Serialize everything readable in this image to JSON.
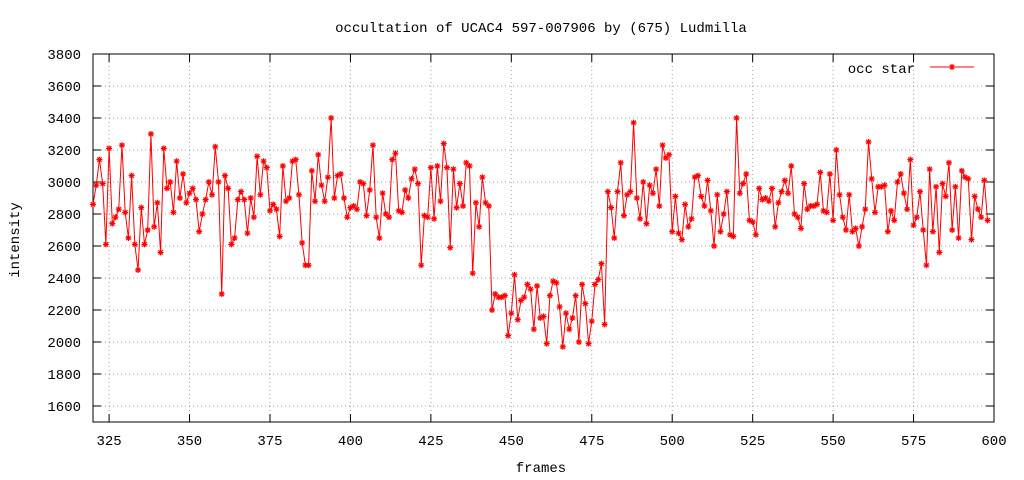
{
  "chart_data": {
    "type": "line",
    "title": "occultation of UCAC4 597-007906 by (675) Ludmilla",
    "xlabel": "frames",
    "ylabel": "intensity",
    "xlim": [
      320,
      600
    ],
    "ylim": [
      1500,
      3800
    ],
    "xticks": [
      325,
      350,
      375,
      400,
      425,
      450,
      475,
      500,
      525,
      550,
      575,
      600
    ],
    "yticks": [
      1600,
      1800,
      2000,
      2200,
      2400,
      2600,
      2800,
      3000,
      3200,
      3400,
      3600,
      3800
    ],
    "grid": true,
    "legend_position": "top-right",
    "colors": {
      "series": "#ff0000"
    },
    "series": [
      {
        "name": "occ star",
        "x_start": 320,
        "x_step": 1,
        "values": [
          2860,
          2980,
          3140,
          2990,
          2610,
          3210,
          2740,
          2780,
          2830,
          3230,
          2810,
          2650,
          3040,
          2610,
          2450,
          2840,
          2610,
          2700,
          3300,
          2720,
          2870,
          2560,
          3210,
          2960,
          3000,
          2810,
          3130,
          2900,
          3050,
          2870,
          2930,
          2960,
          2890,
          2690,
          2800,
          2890,
          3000,
          2920,
          3220,
          3000,
          2300,
          3040,
          2960,
          2610,
          2650,
          2890,
          2940,
          2890,
          2680,
          2900,
          2780,
          3160,
          2920,
          3130,
          3090,
          2820,
          2860,
          2830,
          2660,
          3100,
          2880,
          2900,
          3130,
          3140,
          2920,
          2620,
          2480,
          2480,
          3070,
          2880,
          3170,
          2980,
          2880,
          3030,
          3400,
          2900,
          3040,
          3050,
          2900,
          2780,
          2840,
          2850,
          2830,
          3000,
          2990,
          2790,
          2950,
          3230,
          2780,
          2650,
          2930,
          2800,
          2780,
          3140,
          3180,
          2820,
          2810,
          2950,
          2900,
          3020,
          3080,
          2990,
          2480,
          2790,
          2780,
          3090,
          2770,
          3100,
          2880,
          3240,
          3090,
          2590,
          3080,
          2840,
          2990,
          2850,
          3120,
          3100,
          2430,
          2870,
          2720,
          3030,
          2870,
          2850,
          2200,
          2300,
          2280,
          2280,
          2290,
          2040,
          2180,
          2420,
          2140,
          2260,
          2280,
          2360,
          2330,
          2080,
          2350,
          2150,
          2160,
          1990,
          2290,
          2380,
          2370,
          2220,
          1970,
          2180,
          2080,
          2150,
          2290,
          2000,
          2360,
          2240,
          1990,
          2130,
          2360,
          2390,
          2490,
          2110,
          2940,
          2840,
          2650,
          2940,
          3120,
          2790,
          2920,
          2940,
          3370,
          2900,
          2770,
          3000,
          2740,
          2980,
          2930,
          3080,
          2850,
          3230,
          3150,
          3170,
          2690,
          2910,
          2680,
          2640,
          2860,
          2720,
          2770,
          3030,
          3040,
          2910,
          2850,
          3010,
          2820,
          2600,
          2920,
          2690,
          2800,
          2940,
          2670,
          2660,
          3400,
          2930,
          2990,
          3050,
          2760,
          2750,
          2670,
          2960,
          2890,
          2900,
          2880,
          2960,
          2720,
          2870,
          2940,
          3010,
          2930,
          3100,
          2800,
          2780,
          2710,
          2990,
          2830,
          2850,
          2850,
          2860,
          3060,
          2820,
          2810,
          3050,
          2760,
          3200,
          2920,
          2780,
          2700,
          2920,
          2690,
          2710,
          2600,
          2720,
          2830,
          3250,
          3020,
          2810,
          2970,
          2970,
          2980,
          2690,
          2820,
          2760,
          3000,
          3050,
          2930,
          2830,
          3140,
          2730,
          2780,
          2940,
          2700,
          2480,
          3080,
          2690,
          2970,
          2560,
          2990,
          2910,
          3120,
          2700,
          2970,
          2650,
          3070,
          3030,
          3020,
          2640,
          2910,
          2830,
          2780,
          3010,
          2760
        ]
      }
    ]
  }
}
